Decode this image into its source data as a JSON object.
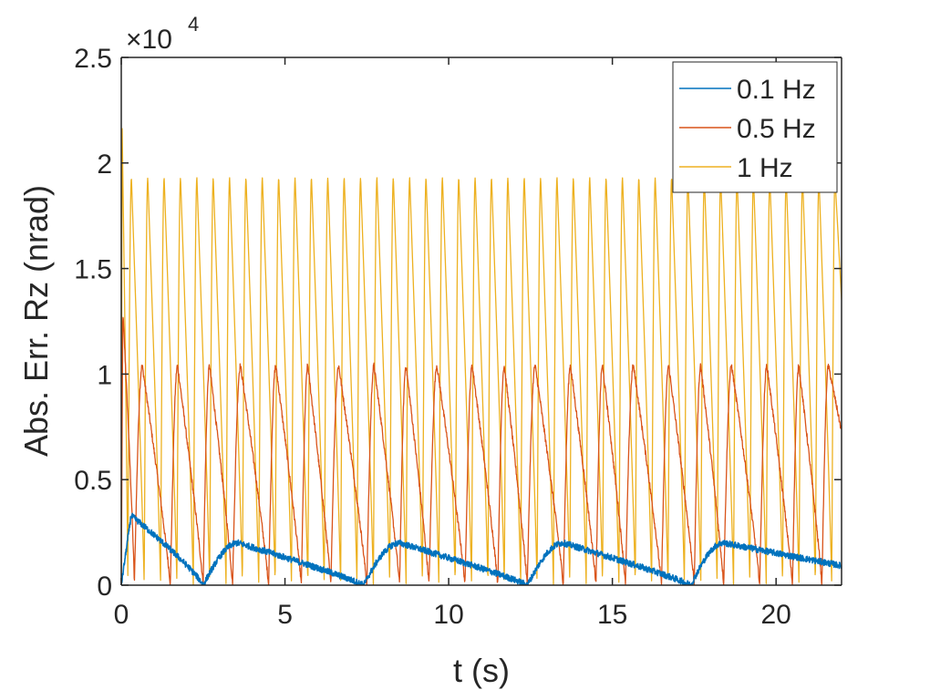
{
  "chart_data": {
    "type": "line",
    "title": "",
    "xlabel": "t (s)",
    "ylabel": "Abs. Err. Rz (nrad)",
    "xlim": [
      0,
      22
    ],
    "ylim": [
      0,
      25000
    ],
    "x_ticks": [
      0,
      5,
      10,
      15,
      20
    ],
    "x_tick_labels": [
      "0",
      "5",
      "10",
      "15",
      "20"
    ],
    "y_ticks": [
      0,
      5000,
      10000,
      15000,
      20000,
      25000
    ],
    "y_tick_labels": [
      "0",
      "0.5",
      "1",
      "1.5",
      "2",
      "2.5"
    ],
    "y_exponent_label": "×10",
    "y_exponent_power": "4",
    "grid": false,
    "legend_position": "top-right",
    "series": [
      {
        "name": "0.1 Hz",
        "color": "#0072BD",
        "period_s": 10,
        "peak_values": [
          3300,
          2000,
          2000,
          2000,
          2000
        ],
        "minima_t": [
          2.5,
          7.4,
          12.4,
          17.4
        ],
        "noise_amplitude": 150
      },
      {
        "name": "0.5 Hz",
        "color": "#D95319",
        "period_s": 2,
        "peak_values": [
          13000,
          10400
        ],
        "minima_t": [
          0.4,
          1.5,
          2.5,
          3.4,
          4.5,
          5.5,
          6.4,
          7.5,
          8.5,
          9.4,
          10.5,
          11.5,
          12.4,
          13.5,
          14.5,
          15.4,
          16.5,
          17.5,
          18.4,
          19.5,
          20.5,
          21.4
        ],
        "noise_amplitude": 150
      },
      {
        "name": "1 Hz",
        "color": "#EDB120",
        "period_s": 1,
        "peak_values": [
          22000,
          19300
        ],
        "minima_t": [
          0.2,
          0.7,
          1.2,
          1.7,
          2.2,
          2.7,
          3.2,
          3.7,
          4.2,
          4.7,
          5.2,
          5.7,
          6.2,
          6.7,
          7.2,
          7.7,
          8.2,
          8.7,
          9.2,
          9.7,
          10.2,
          10.7,
          11.2,
          11.7,
          12.2,
          12.7,
          13.2,
          13.7,
          14.2,
          14.7,
          15.2,
          15.7,
          16.2,
          16.7,
          17.2,
          17.7,
          18.2,
          18.7,
          19.2,
          19.7,
          20.2,
          20.7,
          21.2,
          21.7
        ],
        "noise_amplitude": 0
      }
    ]
  }
}
